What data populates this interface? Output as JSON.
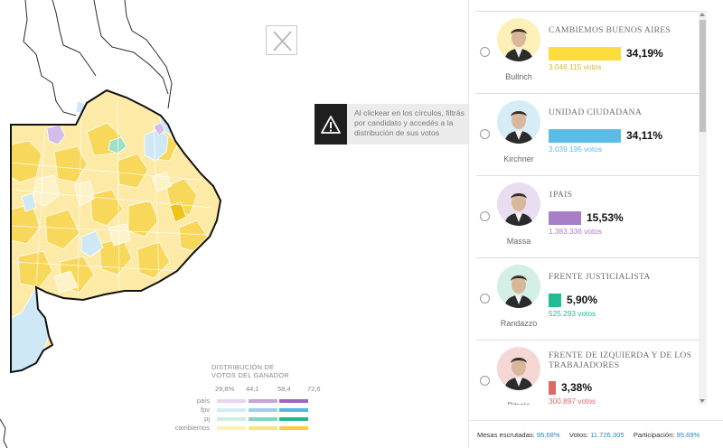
{
  "close": {
    "icon": "close-icon"
  },
  "tooltip": {
    "icon": "warning-icon",
    "text": "Al clickear en los círculos, filtrás por candidato y accedés a la distribución de sus votos"
  },
  "legend": {
    "title_line1": "DISTRIBUCIÓN DE",
    "title_line2": "VOTOS DEL GANADOR",
    "ticks": [
      "29,8%",
      "44,1",
      "58,4",
      "72,6"
    ],
    "rows": [
      {
        "label": "país",
        "colors": [
          "#e8d6ef",
          "#c8a2da",
          "#9f65c0"
        ]
      },
      {
        "label": "fpv",
        "colors": [
          "#d4ebf7",
          "#9cd2ee",
          "#56b5e3"
        ]
      },
      {
        "label": "pj",
        "colors": [
          "#cdeee3",
          "#7fd6bd",
          "#22b98c"
        ]
      },
      {
        "label": "cambiemos",
        "colors": [
          "#fdf2b5",
          "#fbe57a",
          "#f7d133"
        ]
      }
    ]
  },
  "candidates": [
    {
      "party": "CAMBIEMOS BUENOS AIRES",
      "name": "Bullrich",
      "pct": "34,19%",
      "pct_value": 34.19,
      "votes": "3.046.115 votos",
      "color": "#fddc3d",
      "votes_color": "#d8b829",
      "photo_bg": "#fdf0b8"
    },
    {
      "party": "UNIDAD CIUDADANA",
      "name": "Kirchner",
      "pct": "34,11%",
      "pct_value": 34.11,
      "votes": "3.039.195 votos",
      "color": "#5bbde6",
      "votes_color": "#5bbde6",
      "photo_bg": "#d6ecf7"
    },
    {
      "party": "1PAIS",
      "name": "Massa",
      "pct": "15,53%",
      "pct_value": 15.53,
      "votes": "1.383.336 votos",
      "color": "#a97ec9",
      "votes_color": "#a97ec9",
      "photo_bg": "#e9ddf2"
    },
    {
      "party": "FRENTE JUSTICIALISTA",
      "name": "Randazzo",
      "pct": "5,90%",
      "pct_value": 5.9,
      "votes": "525.293 votos",
      "color": "#1fbc95",
      "votes_color": "#1fbc95",
      "photo_bg": "#d3efe6"
    },
    {
      "party": "FRENTE DE IZQUIERDA Y DE LOS TRABAJADORES",
      "name": "Pitrola",
      "pct": "3,38%",
      "pct_value": 3.38,
      "votes": "300.897 votos",
      "color": "#dd6a66",
      "votes_color": "#dd6a66",
      "photo_bg": "#f5d7d6"
    }
  ],
  "footer": {
    "mesas_label": "Mesas escrutadas:",
    "mesas_value": "95,68%",
    "votos_label": "Votos:",
    "votos_value": "11.726.305",
    "part_label": "Participación:",
    "part_value": "95,69%"
  }
}
